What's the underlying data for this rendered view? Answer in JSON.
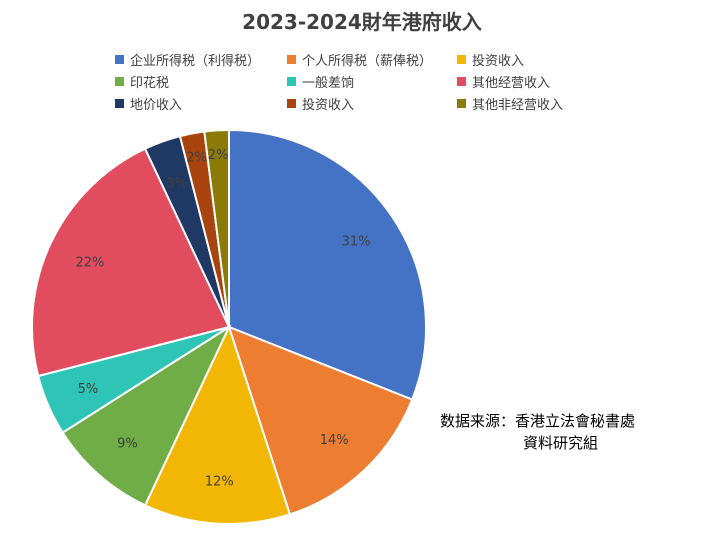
{
  "chart_data": {
    "type": "pie",
    "title": "2023-2024財年港府收入",
    "categories": [
      "企业所得税（利得税）",
      "个人所得税（薪俸税）",
      "投资收入",
      "印花税",
      "一般差饷",
      "其他经营收入",
      "地价收入",
      "投资收入",
      "其他非经营收入"
    ],
    "values": [
      31,
      14,
      12,
      9,
      5,
      22,
      3,
      2,
      2
    ],
    "data_labels": [
      "31%",
      "14%",
      "12%",
      "9%",
      "5%",
      "22%",
      "3%",
      "2%",
      "2%"
    ],
    "colors": [
      "#4472C4",
      "#ED7D31",
      "#F2B705",
      "#70AD47",
      "#2EC4B6",
      "#E24C5F",
      "#203864",
      "#A9440F",
      "#8C7A06"
    ],
    "legend_position": "top"
  },
  "source_note": {
    "line1": "数据来源：香港立法會秘書處",
    "line2": "資料研究組"
  }
}
